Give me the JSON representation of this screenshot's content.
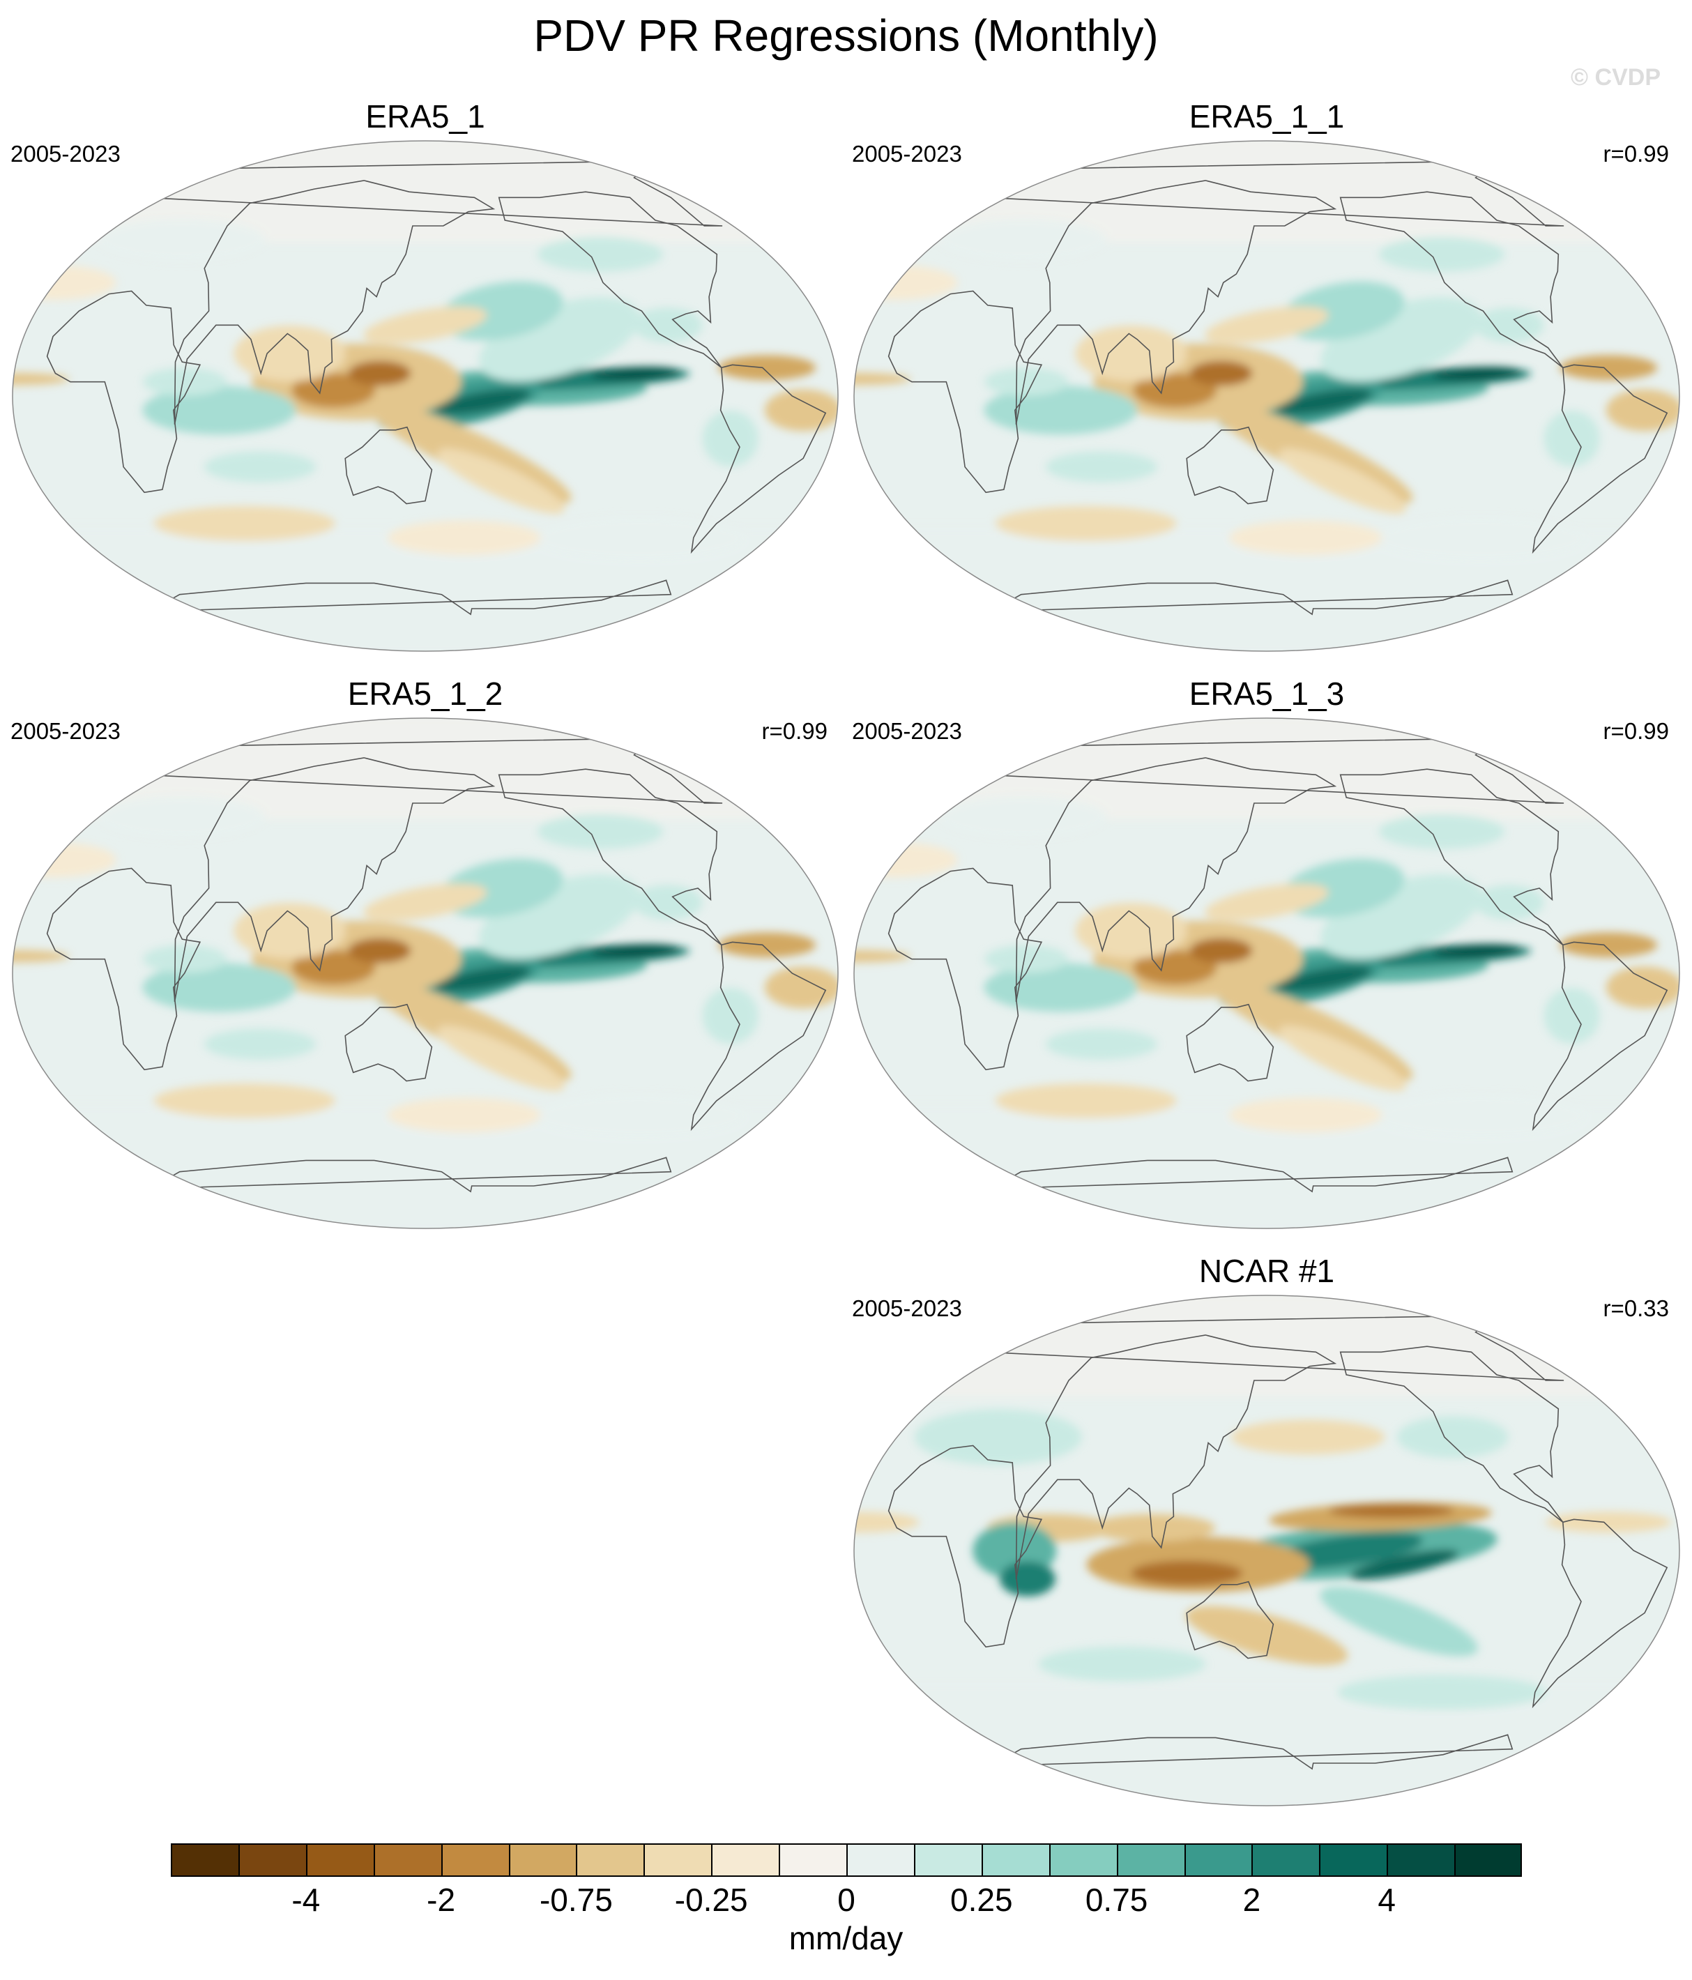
{
  "title": "PDV PR Regressions (Monthly)",
  "watermark": "© CVDP",
  "colors": {
    "scale": [
      "#543005",
      "#7a4610",
      "#965a17",
      "#ad7029",
      "#c28a40",
      "#d2a862",
      "#e3c68d",
      "#efdcb3",
      "#f6ead3",
      "#f5f2ec",
      "#e8f1ef",
      "#c9eae3",
      "#a6ddd3",
      "#85cdbf",
      "#5cb3a4",
      "#3a9a8d",
      "#1e7f72",
      "#08675b",
      "#054f44",
      "#003c30"
    ]
  },
  "panels": [
    {
      "title": "ERA5_1",
      "period": "2005-2023",
      "corr": "",
      "pattern": "obs"
    },
    {
      "title": "ERA5_1_1",
      "period": "2005-2023",
      "corr": "r=0.99",
      "pattern": "obs"
    },
    {
      "title": "ERA5_1_2",
      "period": "2005-2023",
      "corr": "r=0.99",
      "pattern": "obs"
    },
    {
      "title": "ERA5_1_3",
      "period": "2005-2023",
      "corr": "r=0.99",
      "pattern": "obs"
    },
    {
      "title": "NCAR #1",
      "period": "2005-2023",
      "corr": "r=0.33",
      "pattern": "model"
    }
  ],
  "colorbar": {
    "labels": [
      "-4",
      "-2",
      "-0.75",
      "-0.25",
      "0",
      "0.25",
      "0.75",
      "2",
      "4"
    ],
    "units": "mm/day"
  }
}
